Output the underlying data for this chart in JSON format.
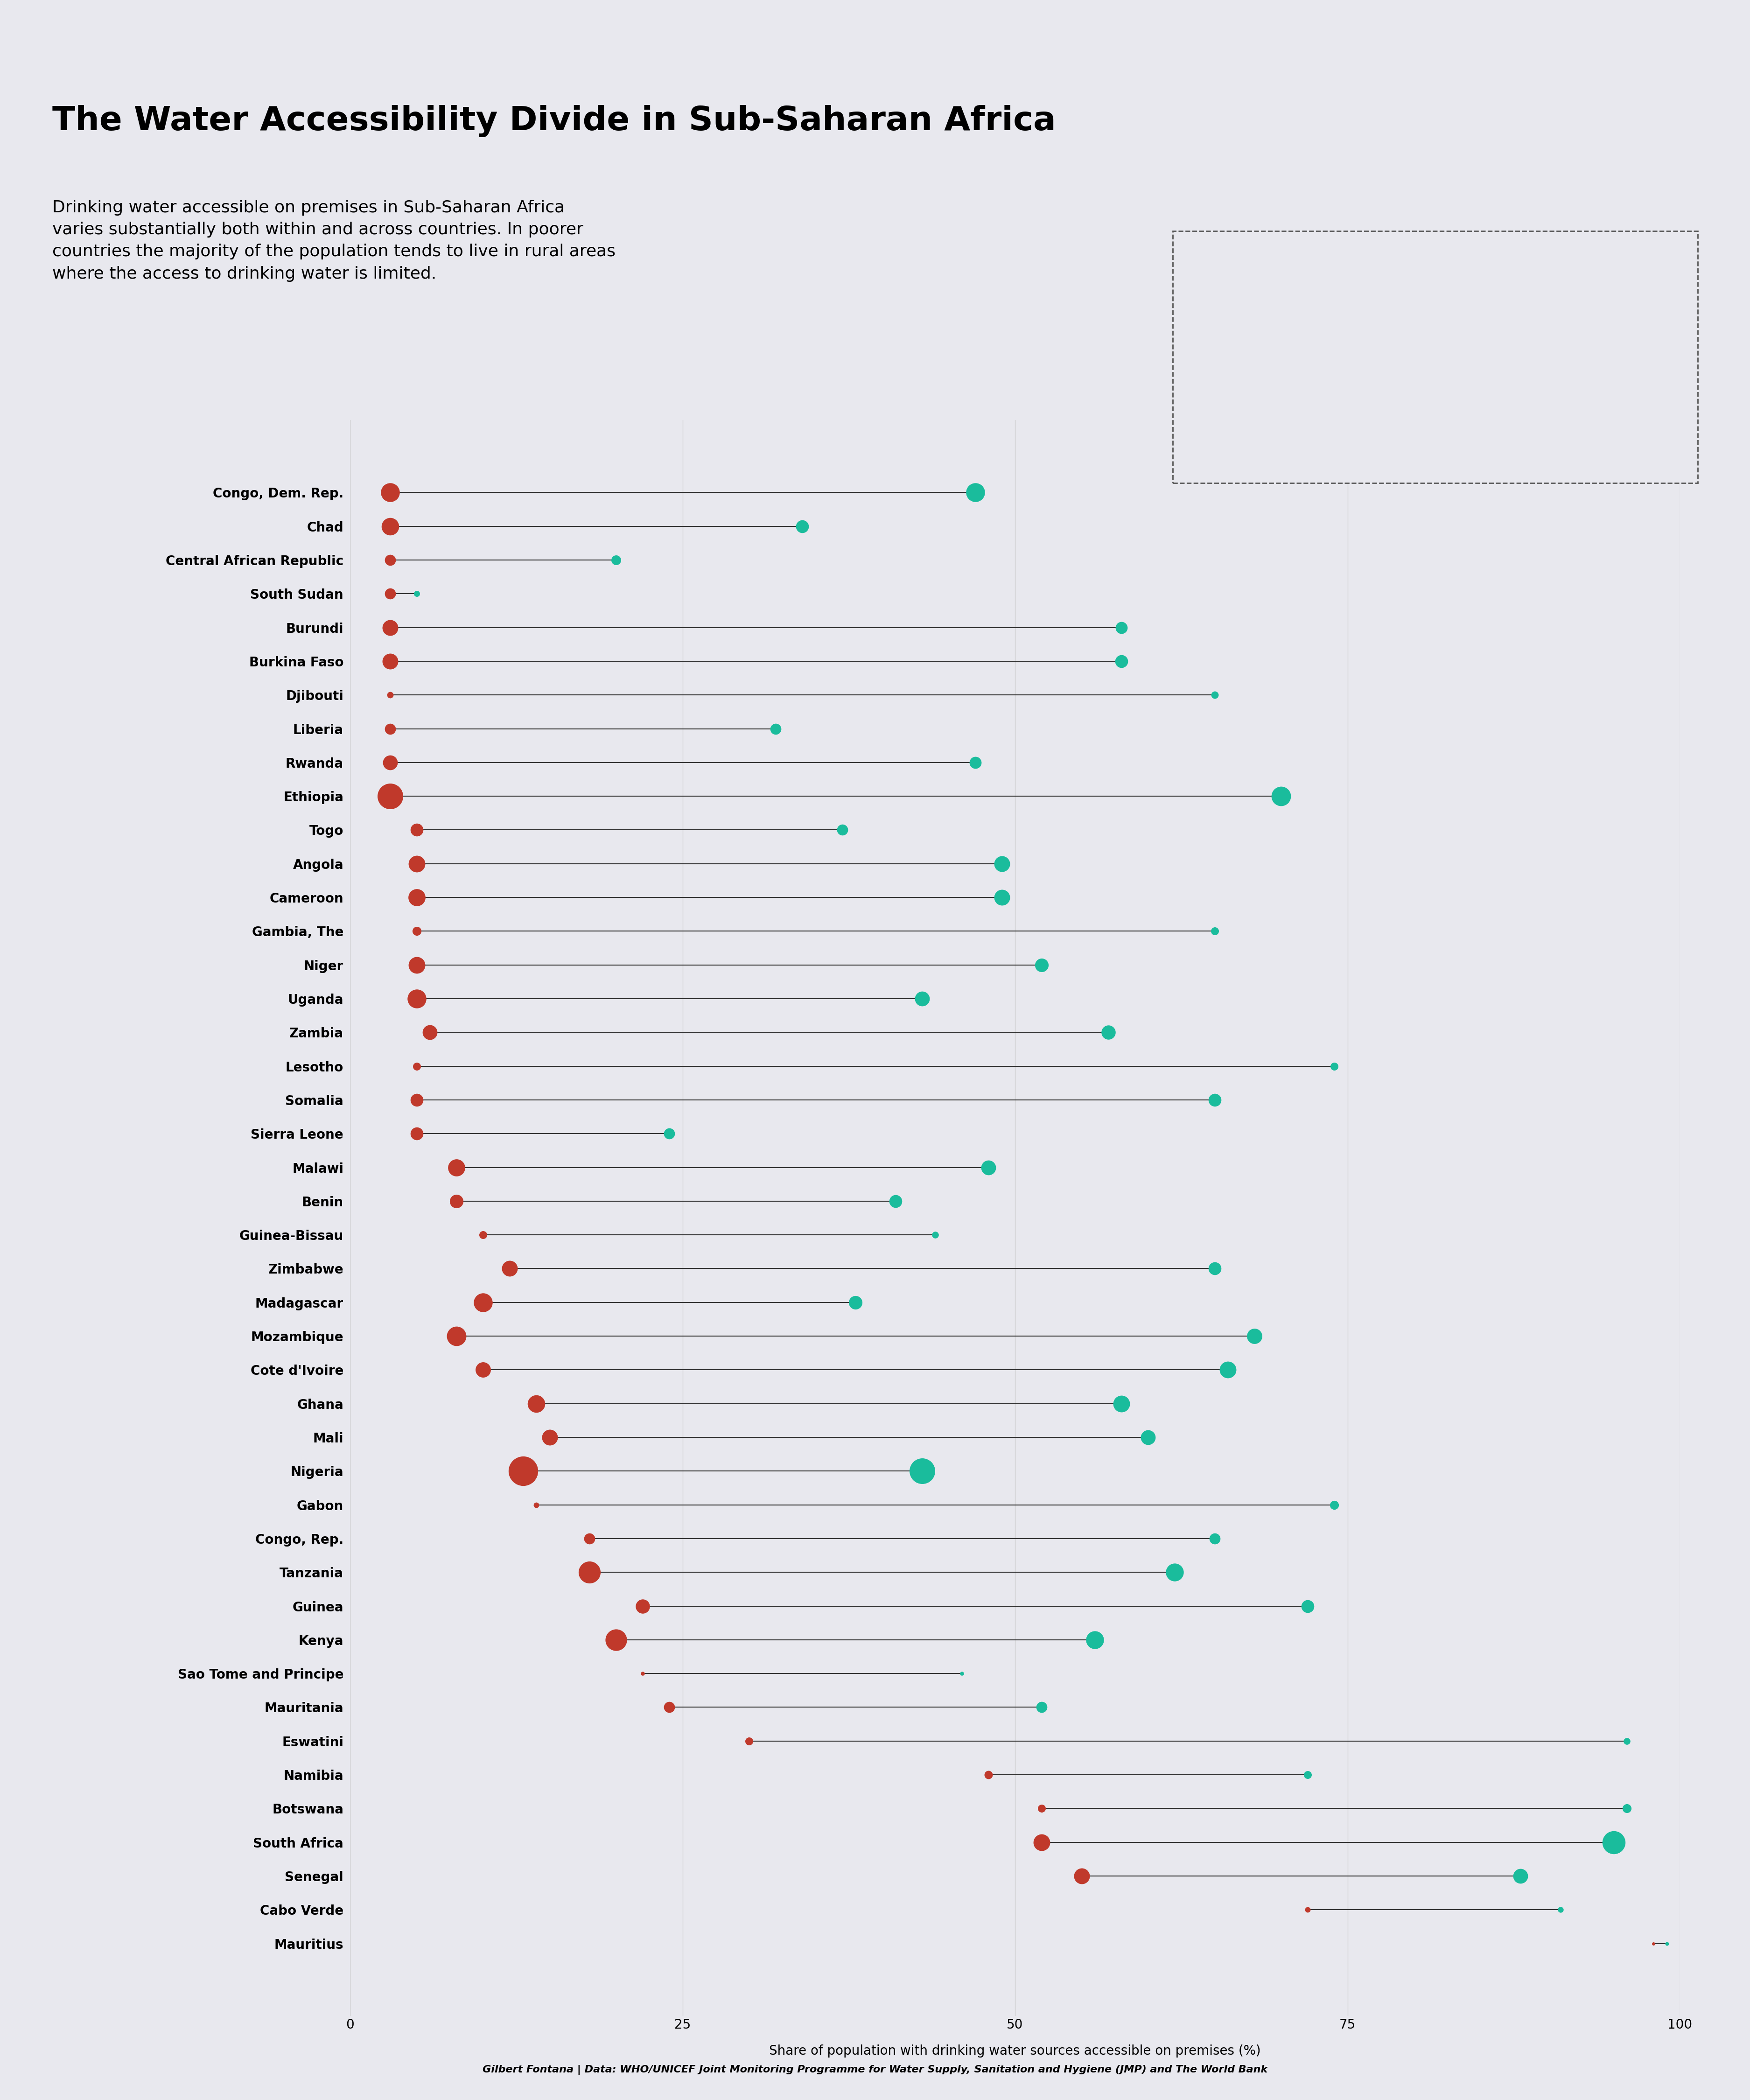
{
  "title": "The Water Accessibility Divide in Sub-Saharan Africa",
  "subtitle": "Drinking water accessible on premises in Sub-Saharan Africa\nvaries substantially both within and across countries. In poorer\ncountries the majority of the population tends to live in rural areas\nwhere the access to drinking water is limited.",
  "xlabel": "Share of population with drinking water sources accessible on premises (%)",
  "footnote": "Gilbert Fontana | Data: WHO/UNICEF Joint Monitoring Programme for Water Supply, Sanitation and Hygiene (JMP) and The World Bank",
  "background_color": "#e8e8ee",
  "rural_color": "#c0392b",
  "urban_color": "#1abc9c",
  "line_color": "#333333",
  "countries": [
    "Congo, Dem. Rep.",
    "Chad",
    "Central African Republic",
    "South Sudan",
    "Burundi",
    "Burkina Faso",
    "Djibouti",
    "Liberia",
    "Rwanda",
    "Ethiopia",
    "Togo",
    "Angola",
    "Cameroon",
    "Gambia, The",
    "Niger",
    "Uganda",
    "Zambia",
    "Lesotho",
    "Somalia",
    "Sierra Leone",
    "Malawi",
    "Benin",
    "Guinea-Bissau",
    "Zimbabwe",
    "Madagascar",
    "Mozambique",
    "Cote d'Ivoire",
    "Ghana",
    "Mali",
    "Nigeria",
    "Gabon",
    "Congo, Rep.",
    "Tanzania",
    "Guinea",
    "Kenya",
    "Sao Tome and Principe",
    "Mauritania",
    "Eswatini",
    "Namibia",
    "Botswana",
    "South Africa",
    "Senegal",
    "Cabo Verde",
    "Mauritius"
  ],
  "rural": [
    3,
    3,
    3,
    3,
    3,
    3,
    3,
    3,
    3,
    3,
    5,
    5,
    5,
    5,
    5,
    5,
    6,
    5,
    5,
    5,
    8,
    8,
    10,
    12,
    10,
    8,
    10,
    14,
    15,
    13,
    14,
    18,
    18,
    22,
    20,
    22,
    24,
    30,
    48,
    52,
    52,
    55,
    72,
    98
  ],
  "urban": [
    47,
    34,
    20,
    5,
    58,
    58,
    65,
    32,
    47,
    70,
    37,
    49,
    49,
    65,
    52,
    43,
    57,
    74,
    65,
    24,
    48,
    41,
    44,
    65,
    38,
    68,
    66,
    58,
    60,
    43,
    74,
    65,
    62,
    72,
    56,
    46,
    52,
    96,
    72,
    96,
    95,
    88,
    91,
    99
  ],
  "rural_pop_size": [
    18,
    14,
    3,
    3,
    10,
    10,
    0.5,
    3,
    8,
    50,
    5,
    12,
    13,
    1.5,
    12,
    18,
    8,
    1,
    5,
    5,
    13,
    6,
    1,
    10,
    18,
    20,
    9,
    14,
    10,
    80,
    0.3,
    3,
    30,
    7,
    28,
    0.1,
    3,
    1,
    1.2,
    1,
    12,
    10,
    0.3,
    0.05
  ],
  "urban_pop_size": [
    18,
    5,
    2,
    0.4,
    4,
    5,
    0.8,
    3,
    4,
    20,
    3,
    10,
    10,
    1,
    6,
    8,
    7,
    1,
    5,
    3,
    8,
    5,
    0.6,
    5,
    6,
    9,
    12,
    12,
    8,
    50,
    1.5,
    3,
    15,
    5,
    15,
    0.1,
    3,
    0.6,
    1,
    1.5,
    35,
    8,
    0.35,
    0.08
  ],
  "xlim": [
    0,
    100
  ],
  "xticks": [
    0,
    25,
    50,
    75,
    100
  ]
}
